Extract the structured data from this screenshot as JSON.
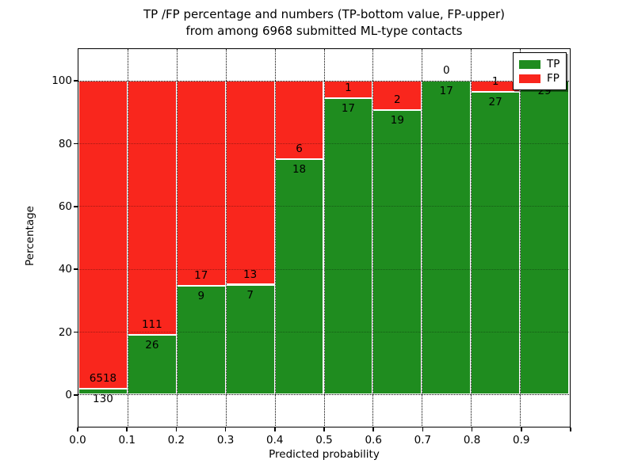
{
  "title": {
    "line1": "TP /FP percentage and numbers (TP-bottom value, FP-upper)",
    "line2": "from among 6968 submitted ML-type contacts"
  },
  "axes": {
    "x_label": "Predicted probability",
    "y_label": "Percentage",
    "x_tick_labels": [
      "0.0",
      "0.1",
      "0.2",
      "0.3",
      "0.4",
      "0.5",
      "0.6",
      "0.7",
      "0.8",
      "0.9"
    ],
    "y_tick_labels": [
      "0",
      "20",
      "40",
      "60",
      "80",
      "100"
    ]
  },
  "legend": {
    "items": [
      {
        "label": "TP",
        "color": "#1f8c1f"
      },
      {
        "label": "FP",
        "color": "#f9261d"
      }
    ]
  },
  "colors": {
    "tp_green": "#1f8c1f",
    "fp_red": "#f9261d",
    "grid": "#000000",
    "background": "#ffffff"
  },
  "chart_data": {
    "type": "bar",
    "stacked": true,
    "normalized_to_percent": true,
    "title": "TP /FP percentage and numbers (TP-bottom value, FP-upper) from among 6968 submitted ML-type contacts",
    "xlabel": "Predicted probability",
    "ylabel": "Percentage",
    "xlim": [
      0.0,
      1.0
    ],
    "ylim": [
      -10,
      110
    ],
    "y_ticks": [
      0,
      20,
      40,
      60,
      80,
      100
    ],
    "bin_width": 0.1,
    "bin_starts": [
      0.0,
      0.1,
      0.2,
      0.3,
      0.4,
      0.5,
      0.6,
      0.7,
      0.8,
      0.9
    ],
    "categories": [
      "0.0-0.1",
      "0.1-0.2",
      "0.2-0.3",
      "0.3-0.4",
      "0.4-0.5",
      "0.5-0.6",
      "0.6-0.7",
      "0.7-0.8",
      "0.8-0.9",
      "0.9-1.0"
    ],
    "series": [
      {
        "name": "TP",
        "color": "#1f8c1f",
        "values": [
          130,
          26,
          9,
          7,
          18,
          17,
          19,
          17,
          27,
          29
        ]
      },
      {
        "name": "FP",
        "color": "#f9261d",
        "values": [
          6518,
          111,
          17,
          13,
          6,
          1,
          2,
          0,
          1,
          0
        ]
      }
    ],
    "tp_percent": [
      1.96,
      18.98,
      34.62,
      35.0,
      75.0,
      94.44,
      90.48,
      100.0,
      96.43,
      100.0
    ],
    "fp_label_visible": [
      true,
      true,
      true,
      true,
      true,
      true,
      true,
      true,
      true,
      false
    ],
    "grid": "dotted",
    "legend_position": "upper right"
  }
}
